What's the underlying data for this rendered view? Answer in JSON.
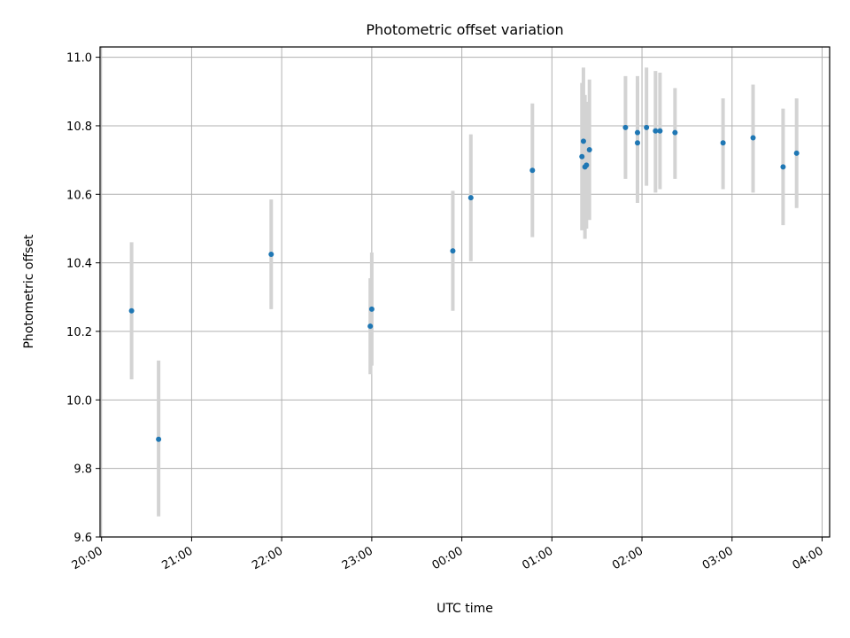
{
  "chart_data": {
    "type": "scatter",
    "title": "Photometric offset variation",
    "xlabel": "UTC time",
    "ylabel": "Photometric offset",
    "ylim": [
      9.6,
      11.03
    ],
    "xlim": [
      "2000-01-01T19:59",
      "2000-01-02T04:05"
    ],
    "grid": true,
    "x_ticks": [
      "20:00",
      "21:00",
      "22:00",
      "23:00",
      "00:00",
      "01:00",
      "02:00",
      "03:00",
      "04:00"
    ],
    "y_ticks": [
      "9.6",
      "9.8",
      "10.0",
      "10.2",
      "10.4",
      "10.6",
      "10.8",
      "11.0"
    ],
    "colors": {
      "points": "#1f77b4",
      "errorbars": "#d3d3d3",
      "grid": "#b0b0b0"
    },
    "points": [
      {
        "x": "2000-01-01T20:20",
        "y": 10.26,
        "yerr_low": 10.06,
        "yerr_high": 10.46
      },
      {
        "x": "2000-01-01T20:38",
        "y": 9.885,
        "yerr_low": 9.66,
        "yerr_high": 10.115
      },
      {
        "x": "2000-01-01T21:53",
        "y": 10.425,
        "yerr_low": 10.265,
        "yerr_high": 10.585
      },
      {
        "x": "2000-01-01T22:59",
        "y": 10.215,
        "yerr_low": 10.075,
        "yerr_high": 10.355
      },
      {
        "x": "2000-01-01T23:00",
        "y": 10.265,
        "yerr_low": 10.1,
        "yerr_high": 10.43
      },
      {
        "x": "2000-01-01T23:54",
        "y": 10.435,
        "yerr_low": 10.26,
        "yerr_high": 10.61
      },
      {
        "x": "2000-01-02T00:06",
        "y": 10.59,
        "yerr_low": 10.405,
        "yerr_high": 10.775
      },
      {
        "x": "2000-01-02T00:47",
        "y": 10.67,
        "yerr_low": 10.475,
        "yerr_high": 10.865
      },
      {
        "x": "2000-01-02T01:20",
        "y": 10.71,
        "yerr_low": 10.495,
        "yerr_high": 10.925
      },
      {
        "x": "2000-01-02T01:21",
        "y": 10.755,
        "yerr_low": 10.54,
        "yerr_high": 10.97
      },
      {
        "x": "2000-01-02T01:22",
        "y": 10.68,
        "yerr_low": 10.47,
        "yerr_high": 10.89
      },
      {
        "x": "2000-01-02T01:23",
        "y": 10.685,
        "yerr_low": 10.5,
        "yerr_high": 10.87
      },
      {
        "x": "2000-01-02T01:25",
        "y": 10.73,
        "yerr_low": 10.525,
        "yerr_high": 10.935
      },
      {
        "x": "2000-01-02T01:49",
        "y": 10.795,
        "yerr_low": 10.645,
        "yerr_high": 10.945
      },
      {
        "x": "2000-01-02T01:57",
        "y": 10.78,
        "yerr_low": 10.615,
        "yerr_high": 10.945
      },
      {
        "x": "2000-01-02T01:57",
        "y": 10.75,
        "yerr_low": 10.575,
        "yerr_high": 10.925
      },
      {
        "x": "2000-01-02T02:03",
        "y": 10.795,
        "yerr_low": 10.625,
        "yerr_high": 10.97
      },
      {
        "x": "2000-01-02T02:09",
        "y": 10.785,
        "yerr_low": 10.605,
        "yerr_high": 10.96
      },
      {
        "x": "2000-01-02T02:12",
        "y": 10.785,
        "yerr_low": 10.615,
        "yerr_high": 10.955
      },
      {
        "x": "2000-01-02T02:22",
        "y": 10.78,
        "yerr_low": 10.645,
        "yerr_high": 10.91
      },
      {
        "x": "2000-01-02T02:54",
        "y": 10.75,
        "yerr_low": 10.615,
        "yerr_high": 10.88
      },
      {
        "x": "2000-01-02T03:14",
        "y": 10.765,
        "yerr_low": 10.605,
        "yerr_high": 10.92
      },
      {
        "x": "2000-01-02T03:34",
        "y": 10.68,
        "yerr_low": 10.51,
        "yerr_high": 10.85
      },
      {
        "x": "2000-01-02T03:43",
        "y": 10.72,
        "yerr_low": 10.56,
        "yerr_high": 10.88
      }
    ]
  }
}
